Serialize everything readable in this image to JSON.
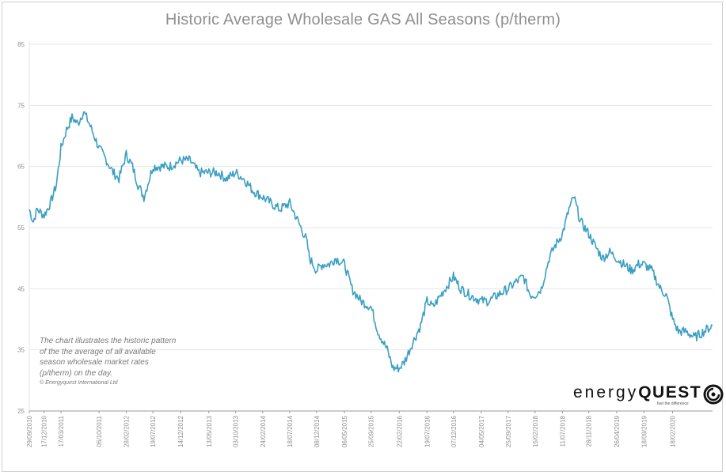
{
  "colors": {
    "line": "#3a9fc2",
    "grid": "#e6e6e6",
    "axis": "#9a9a9a",
    "text": "#8f8f8f"
  },
  "chart_data": {
    "type": "line",
    "title": "Historic Average Wholesale GAS All Seasons (p/therm)",
    "xlabel": "",
    "ylabel": "",
    "ylim": [
      25,
      85
    ],
    "yticks": [
      "85",
      "75",
      "65",
      "55",
      "45",
      "35",
      "25"
    ],
    "x_range": [
      "2010-09-29",
      "2020-09-18"
    ],
    "x_ticks": [
      "29/09/2010",
      "17/12/2010",
      "17/03/2011",
      "06/10/2011",
      "28/02/2012",
      "19/07/2012",
      "14/12/2012",
      "13/05/2013",
      "03/10/2013",
      "24/02/2014",
      "18/07/2014",
      "08/12/2014",
      "06/05/2015",
      "25/09/2015",
      "22/02/2016",
      "19/07/2016",
      "07/12/2016",
      "04/05/2017",
      "25/09/2017",
      "15/02/2018",
      "11/07/2018",
      "28/11/2018",
      "26/04/2019",
      "18/09/2019",
      "18/02/2020"
    ],
    "grid": true,
    "legend": "none",
    "series": [
      {
        "points": [
          [
            "2010-09-29",
            58
          ],
          [
            "2010-10-20",
            56
          ],
          [
            "2010-11-10",
            58
          ],
          [
            "2010-12-17",
            57
          ],
          [
            "2011-01-20",
            59
          ],
          [
            "2011-02-20",
            62
          ],
          [
            "2011-03-17",
            68
          ],
          [
            "2011-04-15",
            71
          ],
          [
            "2011-05-15",
            73
          ],
          [
            "2011-06-15",
            72
          ],
          [
            "2011-07-15",
            74
          ],
          [
            "2011-08-15",
            72
          ],
          [
            "2011-09-10",
            70
          ],
          [
            "2011-10-06",
            68
          ],
          [
            "2011-11-15",
            66
          ],
          [
            "2011-12-20",
            64
          ],
          [
            "2012-01-20",
            63
          ],
          [
            "2012-02-28",
            67
          ],
          [
            "2012-04-01",
            65
          ],
          [
            "2012-05-01",
            62
          ],
          [
            "2012-06-01",
            60
          ],
          [
            "2012-07-19",
            65
          ],
          [
            "2012-09-01",
            65
          ],
          [
            "2012-10-15",
            65
          ],
          [
            "2012-12-14",
            66
          ],
          [
            "2013-02-01",
            66
          ],
          [
            "2013-03-20",
            64
          ],
          [
            "2013-05-13",
            64
          ],
          [
            "2013-07-01",
            64
          ],
          [
            "2013-08-15",
            63
          ],
          [
            "2013-10-03",
            64
          ],
          [
            "2013-11-15",
            63
          ],
          [
            "2014-01-05",
            61
          ],
          [
            "2014-02-24",
            60
          ],
          [
            "2014-04-10",
            59
          ],
          [
            "2014-05-25",
            58
          ],
          [
            "2014-07-18",
            59
          ],
          [
            "2014-09-01",
            56
          ],
          [
            "2014-10-15",
            53
          ],
          [
            "2014-11-01",
            50
          ],
          [
            "2014-12-08",
            48
          ],
          [
            "2015-01-10",
            49
          ],
          [
            "2015-02-15",
            49
          ],
          [
            "2015-03-20",
            50
          ],
          [
            "2015-05-06",
            49
          ],
          [
            "2015-06-15",
            45
          ],
          [
            "2015-08-01",
            43
          ],
          [
            "2015-09-25",
            42
          ],
          [
            "2015-11-01",
            38
          ],
          [
            "2015-12-20",
            35
          ],
          [
            "2016-01-20",
            32
          ],
          [
            "2016-02-22",
            32
          ],
          [
            "2016-03-20",
            33
          ],
          [
            "2016-05-01",
            36
          ],
          [
            "2016-06-15",
            39
          ],
          [
            "2016-07-19",
            43
          ],
          [
            "2016-08-20",
            42
          ],
          [
            "2016-10-01",
            44
          ],
          [
            "2016-12-07",
            47
          ],
          [
            "2017-01-15",
            45
          ],
          [
            "2017-03-01",
            44
          ],
          [
            "2017-05-04",
            43
          ],
          [
            "2017-06-15",
            43
          ],
          [
            "2017-08-01",
            44
          ],
          [
            "2017-09-25",
            45
          ],
          [
            "2017-11-01",
            46
          ],
          [
            "2017-12-15",
            47
          ],
          [
            "2018-01-20",
            44
          ],
          [
            "2018-02-15",
            44
          ],
          [
            "2018-03-20",
            45
          ],
          [
            "2018-05-01",
            50
          ],
          [
            "2018-06-01",
            52
          ],
          [
            "2018-07-11",
            54
          ],
          [
            "2018-08-15",
            58
          ],
          [
            "2018-09-10",
            60
          ],
          [
            "2018-10-15",
            56
          ],
          [
            "2018-11-28",
            54
          ],
          [
            "2019-01-01",
            52
          ],
          [
            "2019-02-10",
            50
          ],
          [
            "2019-03-20",
            51
          ],
          [
            "2019-04-26",
            50
          ],
          [
            "2019-06-01",
            49
          ],
          [
            "2019-07-15",
            48
          ],
          [
            "2019-08-20",
            49
          ],
          [
            "2019-09-18",
            49
          ],
          [
            "2019-10-30",
            48
          ],
          [
            "2019-12-15",
            45
          ],
          [
            "2020-01-15",
            44
          ],
          [
            "2020-02-18",
            40
          ],
          [
            "2020-03-20",
            38
          ],
          [
            "2020-05-01",
            38
          ],
          [
            "2020-06-15",
            37
          ],
          [
            "2020-08-01",
            38
          ],
          [
            "2020-09-18",
            39
          ]
        ]
      }
    ]
  },
  "annotation": {
    "lines": [
      "The chart illustrates the historic pattern",
      "of the the average of all available",
      "season wholesale market rates",
      "(p/therm) on the day."
    ],
    "copyright": "© Energyquest International Ltd"
  },
  "logo": {
    "word_light": "energy",
    "word_bold": "QUEST",
    "tagline": "fuel the difference"
  }
}
